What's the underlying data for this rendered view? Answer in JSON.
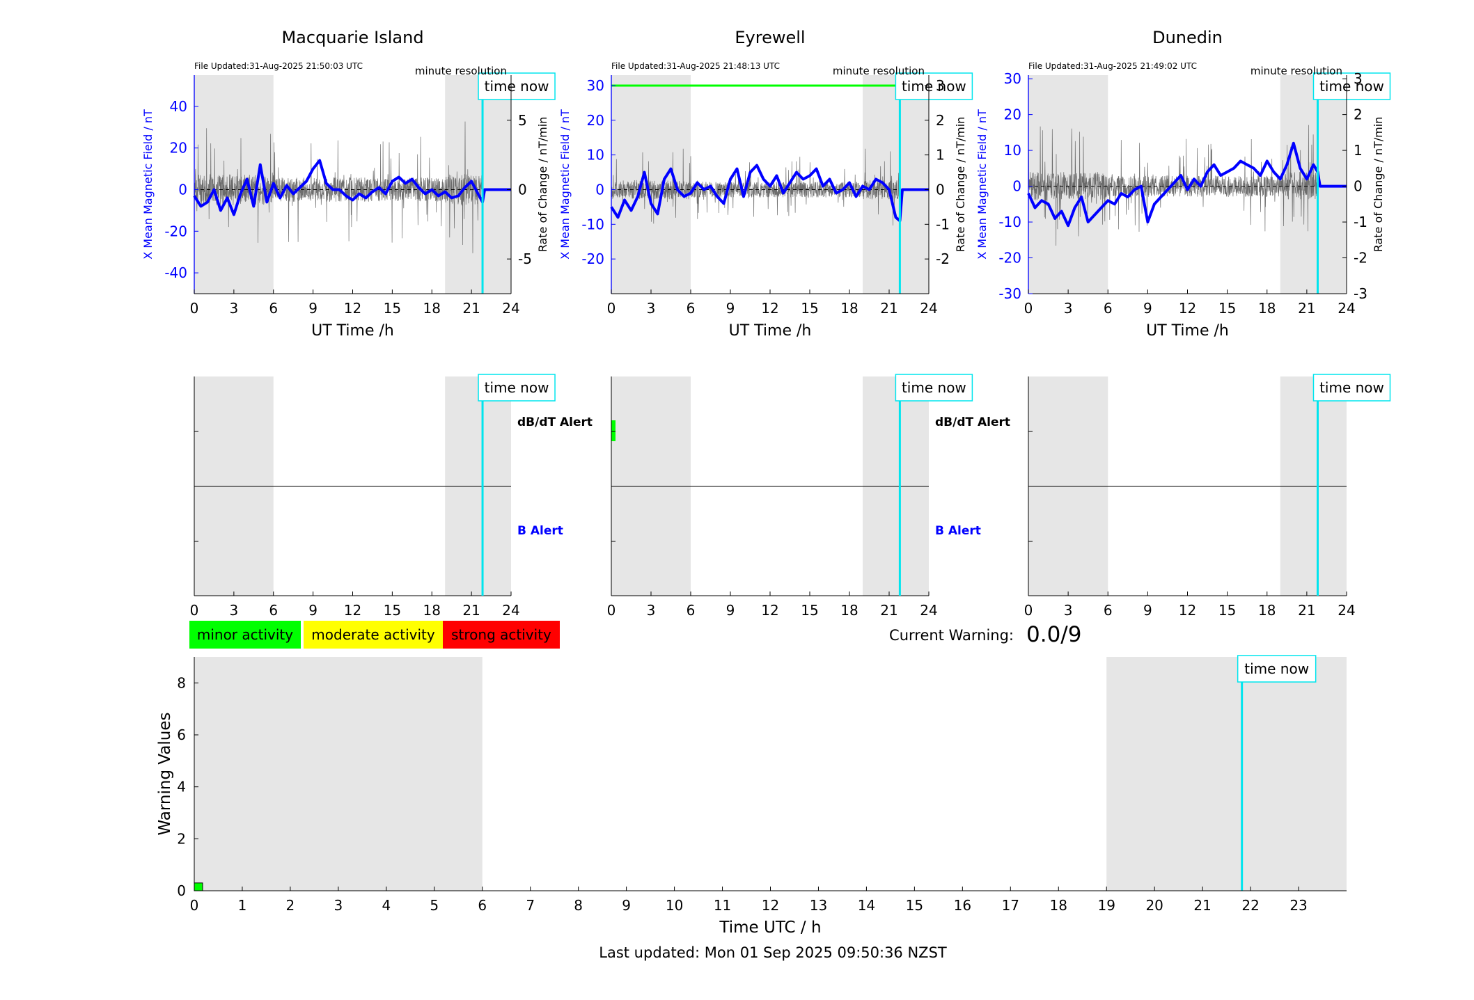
{
  "footer": {
    "last_updated": "Last updated: Mon 01 Sep 2025 09:50:36 NZST"
  },
  "current_warning": {
    "label": "Current Warning:",
    "value": "0.0/9"
  },
  "legend": {
    "minor": "minor activity",
    "minor_color": "#00ff00",
    "moderate": "moderate activity",
    "moderate_color": "#ffff00",
    "strong": "strong activity",
    "strong_color": "#ff0000"
  },
  "colors": {
    "x_series": "#0000ff",
    "rate_series": "#555555",
    "time_now": "#00e5ee",
    "night_shade": "#e6e6e6",
    "threshold": "#00ff00"
  },
  "chart_data": [
    {
      "type": "line",
      "title": "Macquarie Island",
      "file_updated": "File Updated:31-Aug-2025 21:50:03 UTC",
      "resolution_label": "minute resolution",
      "xlabel": "UT Time /h",
      "ylabel_left": "X Mean Magnetic Field / nT",
      "ylabel_right": "Rate of Change / nT/min",
      "xlim": [
        0,
        24
      ],
      "ylim_left": [
        -50,
        55
      ],
      "ylim_right": [
        -7.5,
        8.25
      ],
      "xticks": [
        0,
        3,
        6,
        9,
        12,
        15,
        18,
        21,
        24
      ],
      "yticks_left": [
        -40,
        -20,
        0,
        20,
        40
      ],
      "yticks_right": [
        -5,
        0,
        5
      ],
      "shaded": [
        [
          0,
          6
        ],
        [
          19,
          24
        ]
      ],
      "time_now": 21.84,
      "time_now_label": "time now",
      "series": [
        {
          "axis": "left",
          "x": [
            0,
            0.5,
            1,
            1.5,
            2,
            2.5,
            3,
            3.5,
            4,
            4.5,
            5,
            5.5,
            6,
            6.5,
            7,
            7.5,
            8,
            8.5,
            9,
            9.5,
            10,
            10.5,
            11,
            11.5,
            12,
            12.5,
            13,
            13.5,
            14,
            14.5,
            15,
            15.5,
            16,
            16.5,
            17,
            17.5,
            18,
            18.5,
            19,
            19.5,
            20,
            20.5,
            21,
            21.5,
            21.84,
            22,
            24
          ],
          "y": [
            -3,
            -8,
            -6,
            0,
            -10,
            -4,
            -12,
            -2,
            5,
            -8,
            12,
            -6,
            3,
            -4,
            2,
            -2,
            1,
            4,
            10,
            14,
            3,
            0,
            0,
            -3,
            -5,
            -2,
            -4,
            -1,
            1,
            -2,
            4,
            6,
            3,
            5,
            1,
            -2,
            0,
            -3,
            -1,
            -4,
            -3,
            1,
            4,
            -2,
            -6,
            0,
            0
          ]
        },
        {
          "axis": "right",
          "noise_amplitude": 3.5,
          "noise_amplitude_night": 4.5
        }
      ]
    },
    {
      "type": "line",
      "title": "Eyrewell",
      "file_updated": "File Updated:31-Aug-2025 21:48:13 UTC",
      "resolution_label": "minute resolution",
      "xlabel": "UT Time /h",
      "ylabel_left": "X Mean Magnetic Field / nT",
      "ylabel_right": "Rate of Change / nT/min",
      "xlim": [
        0,
        24
      ],
      "ylim_left": [
        -30,
        33
      ],
      "ylim_right": [
        -3,
        3.3
      ],
      "xticks": [
        0,
        3,
        6,
        9,
        12,
        15,
        18,
        21,
        24
      ],
      "yticks_left": [
        -20,
        -10,
        0,
        10,
        20,
        30
      ],
      "yticks_right": [
        -2,
        -1,
        0,
        1,
        2,
        3
      ],
      "shaded": [
        [
          0,
          6
        ],
        [
          19,
          24
        ]
      ],
      "time_now": 21.81,
      "time_now_label": "time now",
      "threshold_right": 3,
      "series": [
        {
          "axis": "left",
          "x": [
            0,
            0.5,
            1,
            1.5,
            2,
            2.5,
            3,
            3.5,
            4,
            4.5,
            5,
            5.5,
            6,
            6.5,
            7,
            7.5,
            8,
            8.5,
            9,
            9.5,
            10,
            10.5,
            11,
            11.5,
            12,
            12.5,
            13,
            13.5,
            14,
            14.5,
            15,
            15.5,
            16,
            16.5,
            17,
            17.5,
            18,
            18.5,
            19,
            19.5,
            20,
            20.5,
            21,
            21.5,
            21.81,
            22,
            24
          ],
          "y": [
            -5,
            -8,
            -3,
            -6,
            -2,
            5,
            -4,
            -7,
            3,
            6,
            0,
            -2,
            -1,
            2,
            0,
            1,
            -2,
            -4,
            3,
            6,
            -2,
            5,
            7,
            3,
            1,
            4,
            -1,
            2,
            5,
            3,
            4,
            6,
            1,
            3,
            -1,
            0,
            2,
            -2,
            1,
            0,
            3,
            2,
            0,
            -8,
            -9,
            0,
            0
          ]
        },
        {
          "axis": "right",
          "noise_amplitude": 0.9,
          "noise_amplitude_night": 1.1
        }
      ]
    },
    {
      "type": "line",
      "title": "Dunedin",
      "file_updated": "File Updated:31-Aug-2025 21:49:02 UTC",
      "resolution_label": "minute resolution",
      "xlabel": "UT Time /h",
      "ylabel_left": "X Mean Magnetic Field / nT",
      "ylabel_right": "Rate of Change / nT/min",
      "xlim": [
        0,
        24
      ],
      "ylim_left": [
        -30,
        31
      ],
      "ylim_right": [
        -3,
        3.1
      ],
      "xticks": [
        0,
        3,
        6,
        9,
        12,
        15,
        18,
        21,
        24
      ],
      "yticks_left": [
        -30,
        -20,
        -10,
        0,
        10,
        20,
        30
      ],
      "yticks_right": [
        -3,
        -2,
        -1,
        0,
        1,
        2,
        3
      ],
      "shaded": [
        [
          0,
          6
        ],
        [
          19,
          24
        ]
      ],
      "time_now": 21.82,
      "time_now_label": "time now",
      "series": [
        {
          "axis": "left",
          "x": [
            0,
            0.5,
            1,
            1.5,
            2,
            2.5,
            3,
            3.5,
            4,
            4.5,
            5,
            5.5,
            6,
            6.5,
            7,
            7.5,
            8,
            8.5,
            9,
            9.5,
            10,
            10.5,
            11,
            11.5,
            12,
            12.5,
            13,
            13.5,
            14,
            14.5,
            15,
            15.5,
            16,
            16.5,
            17,
            17.5,
            18,
            18.5,
            19,
            19.5,
            20,
            20.5,
            21,
            21.5,
            21.82,
            22,
            24
          ],
          "y": [
            -2,
            -6,
            -4,
            -5,
            -9,
            -7,
            -11,
            -6,
            -3,
            -10,
            -8,
            -6,
            -4,
            -5,
            -2,
            -3,
            -1,
            0,
            -10,
            -5,
            -3,
            -1,
            1,
            3,
            -1,
            2,
            0,
            4,
            6,
            3,
            4,
            5,
            7,
            6,
            5,
            3,
            7,
            4,
            2,
            6,
            12,
            5,
            2,
            6,
            4,
            0,
            0
          ]
        },
        {
          "axis": "right",
          "noise_amplitude": 1.2,
          "noise_amplitude_night": 1.6
        }
      ]
    },
    {
      "type": "bar",
      "title": "",
      "xlim": [
        0,
        24
      ],
      "xticks": [
        0,
        3,
        6,
        9,
        12,
        15,
        18,
        21,
        24
      ],
      "shaded": [
        [
          0,
          6
        ],
        [
          19,
          24
        ]
      ],
      "time_now": [
        21.84,
        21.81,
        21.82
      ],
      "time_now_label": "time now",
      "row_labels": [
        "dB/dT Alert",
        "B Alert"
      ],
      "alerts": [
        {
          "station": "Macquarie Island",
          "dbdt": [],
          "b": []
        },
        {
          "station": "Eyrewell",
          "dbdt": [
            [
              0,
              0.25
            ]
          ],
          "b": []
        },
        {
          "station": "Dunedin",
          "dbdt": [],
          "b": []
        }
      ]
    },
    {
      "type": "bar",
      "title": "",
      "xlabel": "Time UTC / h",
      "ylabel": "Warning Values",
      "xlim": [
        0,
        24
      ],
      "ylim": [
        0,
        9
      ],
      "xticks": [
        0,
        1,
        2,
        3,
        4,
        5,
        6,
        7,
        8,
        9,
        10,
        11,
        12,
        13,
        14,
        15,
        16,
        17,
        18,
        19,
        20,
        21,
        22,
        23
      ],
      "yticks": [
        0,
        2,
        4,
        6,
        8
      ],
      "shaded": [
        [
          0,
          6
        ],
        [
          19,
          24
        ]
      ],
      "time_now": 21.82,
      "time_now_label": "time now",
      "bars": [
        {
          "x0": 0,
          "x1": 0.15,
          "value": 0.3,
          "color": "#00ff00"
        }
      ]
    }
  ]
}
